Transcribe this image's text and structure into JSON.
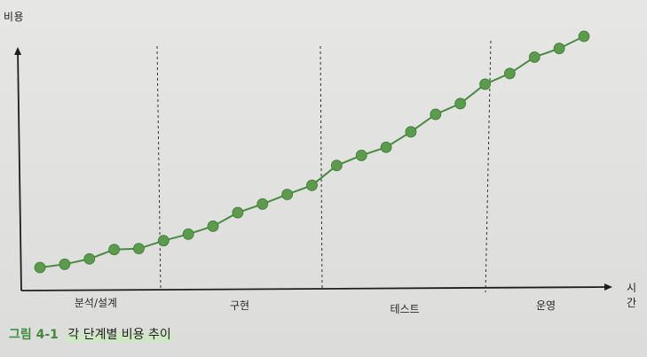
{
  "chart_data": {
    "type": "line",
    "ylabel": "비용",
    "xlabel": "시간",
    "caption_number": "그림 4-1",
    "caption_text": "각 단계별 비용 추이",
    "phases": [
      {
        "label": "분석/설계"
      },
      {
        "label": "구현"
      },
      {
        "label": "테스트"
      },
      {
        "label": "운영"
      }
    ],
    "series": [
      {
        "values": [
          {
            "x": 1,
            "y": 1.0
          },
          {
            "x": 2,
            "y": 2.4
          },
          {
            "x": 3,
            "y": 4.7
          },
          {
            "x": 4,
            "y": 8.7
          },
          {
            "x": 5,
            "y": 9.1
          },
          {
            "x": 6,
            "y": 12.5
          },
          {
            "x": 7,
            "y": 15.3
          },
          {
            "x": 8,
            "y": 18.7
          },
          {
            "x": 9,
            "y": 24.5
          },
          {
            "x": 10,
            "y": 28.2
          },
          {
            "x": 11,
            "y": 32.3
          },
          {
            "x": 12,
            "y": 36.2
          },
          {
            "x": 13,
            "y": 44.7
          },
          {
            "x": 14,
            "y": 49.0
          },
          {
            "x": 15,
            "y": 52.5
          },
          {
            "x": 16,
            "y": 59.1
          },
          {
            "x": 17,
            "y": 66.6
          },
          {
            "x": 18,
            "y": 71.2
          },
          {
            "x": 19,
            "y": 79.5
          },
          {
            "x": 20,
            "y": 84.1
          },
          {
            "x": 21,
            "y": 91.1
          },
          {
            "x": 22,
            "y": 94.8
          },
          {
            "x": 23,
            "y": 100.0
          }
        ]
      }
    ],
    "colors": {
      "line": "#4a8a42",
      "marker": "#5c9a4e",
      "axis": "#1f1f1f",
      "divider": "#333333"
    }
  }
}
